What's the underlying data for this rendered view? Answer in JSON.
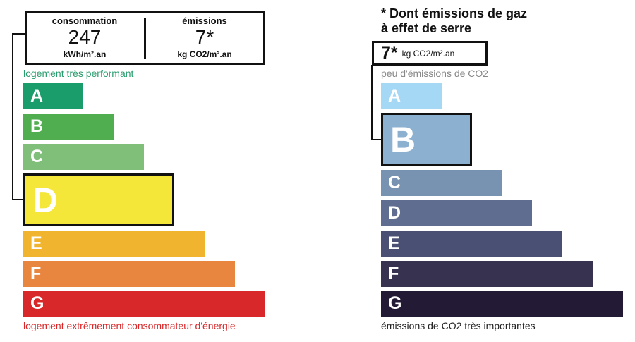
{
  "energy": {
    "consumption": {
      "label": "consommation",
      "value": "247",
      "unit": "kWh/m².an"
    },
    "emissions": {
      "label": "émissions",
      "value": "7*",
      "unit": "kg CO2/m².an"
    },
    "top_note": "logement très performant",
    "classes": [
      "A",
      "B",
      "C",
      "D",
      "E",
      "F",
      "G"
    ],
    "bottom_note": "logement extrêmement consommateur d'énergie"
  },
  "climate": {
    "title": [
      "* Dont émissions de gaz",
      "à effet de serre"
    ],
    "value": "7*",
    "unit": "kg CO2/m².an",
    "top_note": "peu d'émissions de CO2",
    "classes": [
      "A",
      "B",
      "C",
      "D",
      "E",
      "F",
      "G"
    ],
    "bottom_note": "émissions de CO2 très importantes"
  }
}
